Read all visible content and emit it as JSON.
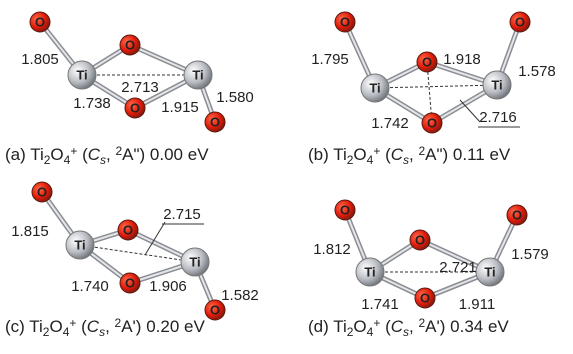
{
  "panels": [
    {
      "atoms": [
        "O",
        "Ti",
        "O",
        "Ti",
        "O",
        "O"
      ],
      "bond_lengths": [
        "1.805",
        "2.713",
        "1.738",
        "1.915",
        "1.580"
      ],
      "caption": [
        "(a) Ti",
        "2",
        "O",
        "4",
        "+",
        " (",
        "C",
        "s",
        ", ",
        "2",
        "A\") 0.00 eV"
      ]
    },
    {
      "atoms": [
        "O",
        "Ti",
        "O",
        "Ti",
        "O",
        "O"
      ],
      "bond_lengths": [
        "1.795",
        "1.918",
        "1.578",
        "1.742",
        "2.716"
      ],
      "caption": [
        "(b) Ti",
        "2",
        "O",
        "4",
        "+",
        " (",
        "C",
        "s",
        ", ",
        "2",
        "A\") 0.11 eV"
      ]
    },
    {
      "atoms": [
        "O",
        "Ti",
        "O",
        "Ti",
        "O",
        "O"
      ],
      "bond_lengths": [
        "1.815",
        "2.715",
        "1.740",
        "1.906",
        "1.582"
      ],
      "caption": [
        "(c) Ti",
        "2",
        "O",
        "4",
        "+",
        " (",
        "C",
        "s",
        ", ",
        "2",
        "A') 0.20 eV"
      ]
    },
    {
      "atoms": [
        "O",
        "Ti",
        "O",
        "Ti",
        "O",
        "O"
      ],
      "bond_lengths": [
        "1.812",
        "2.721",
        "1.579",
        "1.741",
        "1.911"
      ],
      "caption": [
        "(d) Ti",
        "2",
        "O",
        "4",
        "+",
        " (",
        "C",
        "s",
        ", ",
        "2",
        "A') 0.34 eV"
      ]
    }
  ]
}
